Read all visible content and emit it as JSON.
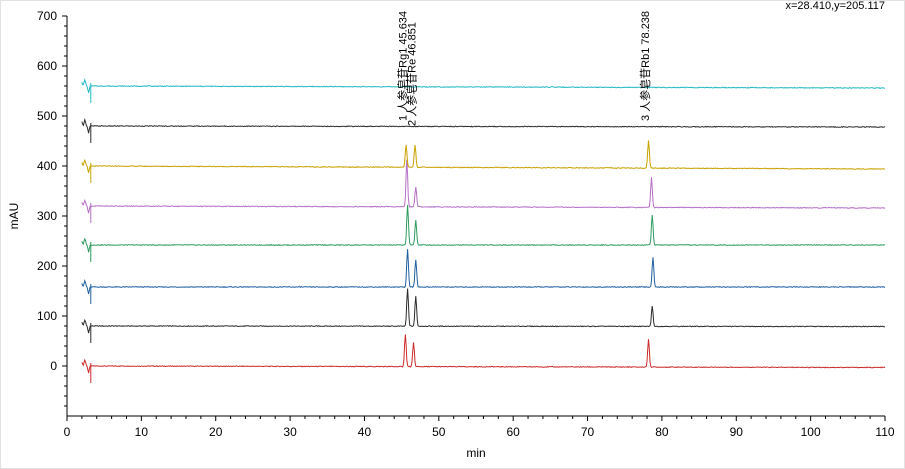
{
  "coord_readout": "x=28.410,y=205.117",
  "chart_data": {
    "type": "line",
    "title": "",
    "xlabel": "min",
    "ylabel": "mAU",
    "xlim": [
      0,
      110
    ],
    "ylim": [
      -100,
      700
    ],
    "x_ticks": [
      0,
      10,
      20,
      30,
      40,
      50,
      60,
      70,
      80,
      90,
      100,
      110
    ],
    "y_ticks": [
      0,
      100,
      200,
      300,
      400,
      500,
      600,
      700
    ],
    "grid": false,
    "series": [
      {
        "color": "#cc2b2b",
        "baseline": 0,
        "end": -3,
        "peaks": [
          [
            45.5,
            65
          ],
          [
            46.6,
            48
          ],
          [
            78.2,
            55
          ]
        ]
      },
      {
        "color": "#2b2b2b",
        "baseline": 80,
        "end": 79,
        "peaks": [
          [
            45.8,
            75
          ],
          [
            46.9,
            60
          ],
          [
            78.7,
            40
          ]
        ]
      },
      {
        "color": "#1f5fa0",
        "baseline": 158,
        "end": 158,
        "peaks": [
          [
            45.8,
            75
          ],
          [
            46.9,
            55
          ],
          [
            78.8,
            60
          ]
        ]
      },
      {
        "color": "#2e9b5e",
        "baseline": 242,
        "end": 242,
        "peaks": [
          [
            45.8,
            80
          ],
          [
            46.9,
            50
          ],
          [
            78.7,
            60
          ]
        ]
      },
      {
        "color": "#b46fc7",
        "baseline": 320,
        "end": 316,
        "peaks": [
          [
            45.7,
            95
          ],
          [
            46.9,
            40
          ],
          [
            78.6,
            60
          ]
        ]
      },
      {
        "color": "#c9a100",
        "baseline": 400,
        "end": 394,
        "peaks": [
          [
            45.6,
            45
          ],
          [
            46.8,
            45
          ],
          [
            78.2,
            55
          ]
        ]
      },
      {
        "color": "#2b2b2b",
        "baseline": 480,
        "end": 478,
        "peaks": []
      },
      {
        "color": "#23b8c4",
        "baseline": 560,
        "end": 556,
        "peaks": []
      }
    ],
    "annotations": [
      {
        "x": 45.634,
        "y": 490,
        "text": "1 人参皂苷Rg1 45.634"
      },
      {
        "x": 46.851,
        "y": 480,
        "text": "2 人参皂苷Re 46.851"
      },
      {
        "x": 78.238,
        "y": 490,
        "text": "3 人参皂苷Rb1 78.238"
      }
    ]
  }
}
